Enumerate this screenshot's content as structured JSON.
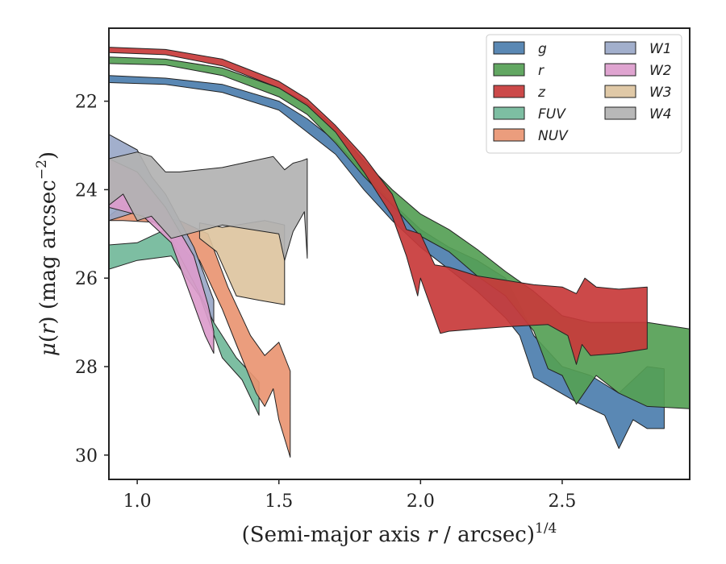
{
  "chart_data": {
    "type": "area",
    "xlabel": "(Semi-major axis r / arcsec)",
    "xlabel_prefix": "(Semi-major axis ",
    "xlabel_var": "r",
    "xlabel_suffix": " / arcsec)",
    "xlabel_sup": "1/4",
    "ylabel": "μ(r) (mag arcsec−2)",
    "ylabel_mu": "μ",
    "ylabel_open": "(",
    "ylabel_var": "r",
    "ylabel_mid": ") (mag arcsec",
    "ylabel_sup": "−2",
    "ylabel_close": ")",
    "xlim": [
      0.9,
      2.95
    ],
    "ylim": [
      30.55,
      20.35
    ],
    "y_inverted": true,
    "xticks": [
      1.0,
      1.5,
      2.0,
      2.5
    ],
    "xtick_labels": [
      "1.0",
      "1.5",
      "2.0",
      "2.5"
    ],
    "yticks": [
      22,
      24,
      26,
      28,
      30
    ],
    "ytick_labels": [
      "22",
      "24",
      "26",
      "28",
      "30"
    ],
    "grid": false,
    "legend_position": "top-right",
    "legend_columns": 2,
    "series": [
      {
        "name": "g",
        "color": "#4c7eae",
        "upper": [
          [
            0.9,
            21.42
          ],
          [
            1.1,
            21.48
          ],
          [
            1.3,
            21.62
          ],
          [
            1.5,
            22.0
          ],
          [
            1.6,
            22.4
          ],
          [
            1.7,
            22.9
          ],
          [
            1.8,
            23.6
          ],
          [
            1.9,
            24.3
          ],
          [
            2.0,
            24.9
          ],
          [
            2.1,
            25.3
          ],
          [
            2.2,
            25.6
          ],
          [
            2.3,
            26.0
          ],
          [
            2.35,
            26.6
          ],
          [
            2.4,
            27.3
          ],
          [
            2.5,
            28.0
          ],
          [
            2.6,
            28.2
          ],
          [
            2.7,
            28.6
          ],
          [
            2.8,
            28.0
          ],
          [
            2.86,
            28.05
          ]
        ],
        "lower": [
          [
            2.86,
            29.4
          ],
          [
            2.8,
            29.4
          ],
          [
            2.75,
            29.2
          ],
          [
            2.7,
            29.85
          ],
          [
            2.65,
            29.1
          ],
          [
            2.55,
            28.8
          ],
          [
            2.4,
            28.25
          ],
          [
            2.35,
            27.3
          ],
          [
            2.3,
            26.9
          ],
          [
            2.2,
            26.3
          ],
          [
            2.1,
            25.8
          ],
          [
            2.0,
            25.3
          ],
          [
            1.9,
            24.7
          ],
          [
            1.8,
            24.0
          ],
          [
            1.7,
            23.2
          ],
          [
            1.6,
            22.7
          ],
          [
            1.5,
            22.2
          ],
          [
            1.3,
            21.8
          ],
          [
            1.1,
            21.62
          ],
          [
            0.9,
            21.58
          ]
        ]
      },
      {
        "name": "r",
        "color": "#55a055",
        "upper": [
          [
            0.9,
            21.0
          ],
          [
            1.1,
            21.05
          ],
          [
            1.3,
            21.25
          ],
          [
            1.5,
            21.7
          ],
          [
            1.6,
            22.05
          ],
          [
            1.7,
            22.6
          ],
          [
            1.8,
            23.35
          ],
          [
            1.9,
            24.0
          ],
          [
            2.0,
            24.55
          ],
          [
            2.1,
            24.9
          ],
          [
            2.2,
            25.35
          ],
          [
            2.3,
            25.85
          ],
          [
            2.4,
            26.3
          ],
          [
            2.5,
            26.85
          ],
          [
            2.6,
            27.0
          ],
          [
            2.7,
            27.0
          ],
          [
            2.8,
            27.0
          ],
          [
            2.95,
            27.15
          ]
        ],
        "lower": [
          [
            2.95,
            28.95
          ],
          [
            2.8,
            28.9
          ],
          [
            2.7,
            28.6
          ],
          [
            2.62,
            28.2
          ],
          [
            2.55,
            28.85
          ],
          [
            2.5,
            28.2
          ],
          [
            2.45,
            28.05
          ],
          [
            2.4,
            27.2
          ],
          [
            2.3,
            26.4
          ],
          [
            2.2,
            25.95
          ],
          [
            2.1,
            25.4
          ],
          [
            2.0,
            25.05
          ],
          [
            1.9,
            24.35
          ],
          [
            1.8,
            23.7
          ],
          [
            1.7,
            22.95
          ],
          [
            1.6,
            22.3
          ],
          [
            1.5,
            21.9
          ],
          [
            1.3,
            21.42
          ],
          [
            1.1,
            21.18
          ],
          [
            0.9,
            21.15
          ]
        ]
      },
      {
        "name": "z",
        "color": "#c83a3a",
        "upper": [
          [
            0.9,
            20.78
          ],
          [
            1.1,
            20.83
          ],
          [
            1.3,
            21.05
          ],
          [
            1.5,
            21.55
          ],
          [
            1.6,
            21.95
          ],
          [
            1.7,
            22.55
          ],
          [
            1.8,
            23.25
          ],
          [
            1.9,
            24.1
          ],
          [
            1.95,
            24.9
          ],
          [
            2.0,
            25.0
          ],
          [
            2.05,
            25.7
          ],
          [
            2.1,
            25.75
          ],
          [
            2.2,
            25.95
          ],
          [
            2.3,
            26.05
          ],
          [
            2.4,
            26.15
          ],
          [
            2.5,
            26.2
          ],
          [
            2.55,
            26.35
          ],
          [
            2.58,
            26.0
          ],
          [
            2.62,
            26.2
          ],
          [
            2.7,
            26.25
          ],
          [
            2.8,
            26.2
          ]
        ],
        "lower": [
          [
            2.8,
            27.6
          ],
          [
            2.7,
            27.7
          ],
          [
            2.6,
            27.75
          ],
          [
            2.57,
            27.5
          ],
          [
            2.55,
            27.95
          ],
          [
            2.52,
            27.3
          ],
          [
            2.45,
            27.05
          ],
          [
            2.3,
            27.1
          ],
          [
            2.2,
            27.15
          ],
          [
            2.1,
            27.2
          ],
          [
            2.07,
            27.25
          ],
          [
            2.0,
            26.0
          ],
          [
            1.99,
            26.4
          ],
          [
            1.95,
            25.5
          ],
          [
            1.9,
            24.6
          ],
          [
            1.8,
            23.6
          ],
          [
            1.7,
            22.7
          ],
          [
            1.6,
            22.1
          ],
          [
            1.5,
            21.7
          ],
          [
            1.3,
            21.2
          ],
          [
            1.1,
            20.95
          ],
          [
            0.9,
            20.9
          ]
        ]
      },
      {
        "name": "FUV",
        "color": "#72b89a",
        "upper": [
          [
            0.9,
            25.25
          ],
          [
            1.0,
            25.2
          ],
          [
            1.1,
            24.9
          ],
          [
            1.2,
            25.6
          ],
          [
            1.27,
            27.0
          ],
          [
            1.35,
            27.8
          ],
          [
            1.43,
            28.35
          ]
        ],
        "lower": [
          [
            1.43,
            29.1
          ],
          [
            1.37,
            28.3
          ],
          [
            1.3,
            27.8
          ],
          [
            1.22,
            26.4
          ],
          [
            1.12,
            25.5
          ],
          [
            1.0,
            25.6
          ],
          [
            0.9,
            25.8
          ]
        ]
      },
      {
        "name": "NUV",
        "color": "#e99572",
        "upper": [
          [
            0.9,
            24.6
          ],
          [
            0.95,
            24.35
          ],
          [
            1.05,
            24.6
          ],
          [
            1.15,
            24.7
          ],
          [
            1.25,
            25.0
          ],
          [
            1.32,
            26.2
          ],
          [
            1.4,
            27.3
          ],
          [
            1.45,
            27.75
          ],
          [
            1.5,
            27.45
          ],
          [
            1.54,
            28.1
          ]
        ],
        "lower": [
          [
            1.54,
            30.05
          ],
          [
            1.5,
            29.2
          ],
          [
            1.48,
            28.5
          ],
          [
            1.45,
            28.9
          ],
          [
            1.42,
            28.6
          ],
          [
            1.35,
            27.5
          ],
          [
            1.3,
            26.7
          ],
          [
            1.22,
            25.6
          ],
          [
            1.1,
            24.75
          ],
          [
            0.95,
            24.7
          ],
          [
            0.9,
            24.7
          ]
        ]
      },
      {
        "name": "W1",
        "color": "#9aa8c8",
        "upper": [
          [
            0.9,
            22.75
          ],
          [
            1.0,
            23.1
          ],
          [
            1.05,
            23.7
          ],
          [
            1.1,
            24.1
          ],
          [
            1.2,
            25.3
          ],
          [
            1.27,
            26.5
          ]
        ],
        "lower": [
          [
            1.27,
            27.0
          ],
          [
            1.2,
            26.1
          ],
          [
            1.1,
            24.9
          ],
          [
            1.0,
            24.5
          ],
          [
            0.9,
            24.7
          ]
        ]
      },
      {
        "name": "W2",
        "color": "#dc9ccc",
        "upper": [
          [
            0.9,
            23.3
          ],
          [
            1.0,
            23.6
          ],
          [
            1.1,
            24.4
          ],
          [
            1.2,
            25.5
          ],
          [
            1.25,
            26.6
          ],
          [
            1.27,
            27.2
          ]
        ],
        "lower": [
          [
            1.27,
            27.7
          ],
          [
            1.24,
            27.3
          ],
          [
            1.2,
            26.6
          ],
          [
            1.12,
            25.2
          ],
          [
            1.02,
            24.6
          ],
          [
            0.9,
            24.4
          ]
        ]
      },
      {
        "name": "W3",
        "color": "#ddc4a0",
        "upper": [
          [
            1.22,
            24.75
          ],
          [
            1.3,
            24.85
          ],
          [
            1.45,
            24.7
          ],
          [
            1.52,
            24.8
          ]
        ],
        "lower": [
          [
            1.52,
            26.6
          ],
          [
            1.43,
            26.5
          ],
          [
            1.35,
            26.4
          ],
          [
            1.28,
            25.4
          ],
          [
            1.22,
            25.1
          ]
        ]
      },
      {
        "name": "W4",
        "color": "#b2b2b2",
        "upper": [
          [
            0.9,
            23.3
          ],
          [
            1.0,
            23.15
          ],
          [
            1.05,
            23.25
          ],
          [
            1.1,
            23.6
          ],
          [
            1.15,
            23.6
          ],
          [
            1.3,
            23.5
          ],
          [
            1.48,
            23.25
          ],
          [
            1.52,
            23.55
          ],
          [
            1.55,
            23.4
          ],
          [
            1.58,
            23.35
          ],
          [
            1.6,
            23.3
          ]
        ],
        "lower": [
          [
            1.6,
            25.55
          ],
          [
            1.59,
            24.5
          ],
          [
            1.55,
            24.95
          ],
          [
            1.52,
            25.6
          ],
          [
            1.5,
            25.0
          ],
          [
            1.3,
            24.8
          ],
          [
            1.12,
            25.1
          ],
          [
            1.05,
            24.6
          ],
          [
            1.0,
            24.7
          ],
          [
            0.95,
            24.1
          ],
          [
            0.9,
            24.35
          ]
        ]
      }
    ]
  }
}
